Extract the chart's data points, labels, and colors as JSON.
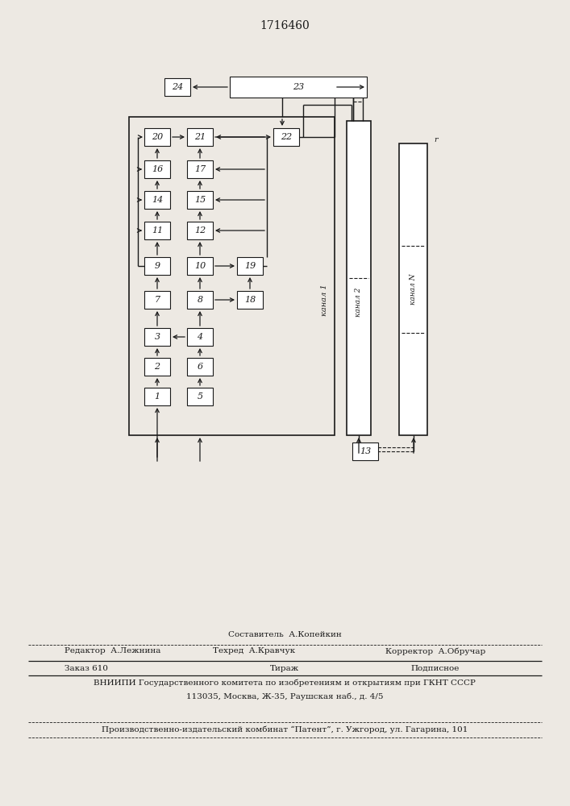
{
  "title": "1716460",
  "bg_color": "#ede9e3",
  "box_color": "#ffffff",
  "line_color": "#1a1a1a",
  "footer": {
    "line1_center": "Составитель  А.Копейкин",
    "line2_left": "Редактор  А.Лежнина",
    "line2_center": "Техред  А.Кравчук",
    "line2_right": "Корректор  А.Обручар",
    "line3_left": "Заказ 610",
    "line3_center": "Тираж",
    "line3_right": "Подписное",
    "line4": "ВНИИПИ Государственного комитета по изобретениям и открытиям при ГКНТ СССР",
    "line5": "113035, Москва, Ж-35, Раушская наб., д. 4/5",
    "line6": "Производственно-издательский комбинат “Патент”, г. Ужгород, ул. Гагарина, 101"
  }
}
